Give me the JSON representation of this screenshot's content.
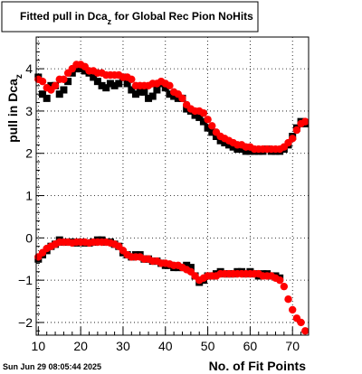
{
  "title_box": {
    "title": "Fitted pull in Dca",
    "title_sub": "z",
    "title_rest": " for Global Rec Pion NoHits"
  },
  "timestamp": "Sun Jun 29 08:05:44 2025",
  "chart_data": {
    "type": "scatter",
    "title": "Fitted pull in Dca_z for Global Rec Pion NoHits",
    "xlabel": "No. of Fit Points",
    "ylabel": "pull in Dca",
    "ylabel_sub": "z",
    "xlim": [
      9.5,
      73.8
    ],
    "ylim": [
      -2.3,
      4.75
    ],
    "xticks": [
      10,
      20,
      30,
      40,
      50,
      60,
      70
    ],
    "xticklabels": [
      "10",
      "20",
      "30",
      "40",
      "50",
      "60",
      "70"
    ],
    "yticks": [
      -2,
      -1,
      0,
      1,
      2,
      3,
      4
    ],
    "yticklabels": [
      "−2",
      "−1",
      "0",
      "1",
      "2",
      "3",
      "4"
    ],
    "grid": true,
    "series": [
      {
        "marker": "square",
        "color": "#000000",
        "x": [
          10,
          11,
          12,
          13,
          14,
          15,
          16,
          17,
          18,
          19,
          20,
          21,
          22,
          23,
          24,
          25,
          26,
          27,
          28,
          29,
          30,
          31,
          32,
          33,
          34,
          35,
          36,
          37,
          38,
          39,
          40,
          41,
          42,
          43,
          44,
          45,
          46,
          47,
          48,
          49,
          50,
          51,
          52,
          53,
          54,
          55,
          56,
          57,
          58,
          59,
          60,
          61,
          62,
          63,
          64,
          65,
          66,
          67,
          68,
          69,
          70,
          71,
          72,
          73
        ],
        "y": [
          3.8,
          3.4,
          3.3,
          3.6,
          3.6,
          3.4,
          3.5,
          3.7,
          3.9,
          4.0,
          4.0,
          3.95,
          3.9,
          3.8,
          3.7,
          3.6,
          3.55,
          3.65,
          3.6,
          3.65,
          3.8,
          3.65,
          3.5,
          3.4,
          3.45,
          3.45,
          3.3,
          3.35,
          3.5,
          3.65,
          3.55,
          3.4,
          3.35,
          3.3,
          3.3,
          3.05,
          3.0,
          2.9,
          2.85,
          2.75,
          2.6,
          2.5,
          2.4,
          2.3,
          2.25,
          2.2,
          2.15,
          2.1,
          2.1,
          2.05,
          2.05,
          2.05,
          2.05,
          2.05,
          2.1,
          2.05,
          2.05,
          2.05,
          2.1,
          2.2,
          2.4,
          2.6,
          2.75,
          2.7
        ]
      },
      {
        "marker": "square",
        "color": "#000000",
        "x": [
          10,
          11,
          12,
          13,
          14,
          15,
          16,
          17,
          18,
          19,
          20,
          21,
          22,
          23,
          24,
          25,
          26,
          27,
          28,
          29,
          30,
          31,
          32,
          33,
          34,
          35,
          36,
          37,
          38,
          39,
          40,
          41,
          42,
          43,
          44,
          45,
          46,
          47,
          48,
          49,
          50,
          51,
          52,
          53,
          54,
          55,
          56,
          57,
          58,
          59,
          60,
          61,
          62,
          63,
          64,
          65,
          66,
          67
        ],
        "y": [
          -0.5,
          -0.4,
          -0.3,
          -0.2,
          -0.15,
          -0.05,
          -0.1,
          -0.1,
          -0.1,
          -0.12,
          -0.1,
          -0.12,
          -0.12,
          -0.1,
          -0.05,
          -0.05,
          -0.1,
          -0.1,
          -0.15,
          -0.2,
          -0.35,
          -0.4,
          -0.45,
          -0.4,
          -0.4,
          -0.5,
          -0.5,
          -0.55,
          -0.55,
          -0.6,
          -0.65,
          -0.65,
          -0.7,
          -0.7,
          -0.7,
          -0.65,
          -0.7,
          -0.9,
          -1.05,
          -1.0,
          -0.9,
          -0.9,
          -0.85,
          -0.8,
          -0.85,
          -0.85,
          -0.85,
          -0.8,
          -0.8,
          -0.85,
          -0.8,
          -0.85,
          -0.9,
          -0.85,
          -0.85,
          -0.9,
          -0.9,
          -0.95
        ]
      },
      {
        "marker": "circle",
        "color": "#ff0000",
        "x": [
          10,
          11,
          12,
          13,
          14,
          15,
          16,
          17,
          18,
          19,
          20,
          21,
          22,
          23,
          24,
          25,
          26,
          27,
          28,
          29,
          30,
          31,
          32,
          33,
          34,
          35,
          36,
          37,
          38,
          39,
          40,
          41,
          42,
          43,
          44,
          45,
          46,
          47,
          48,
          49,
          50,
          51,
          52,
          53,
          54,
          55,
          56,
          57,
          58,
          59,
          60,
          61,
          62,
          63,
          64,
          65,
          66,
          67,
          68,
          69,
          70,
          71,
          72,
          73
        ],
        "y": [
          3.75,
          3.7,
          3.55,
          3.5,
          3.6,
          3.75,
          3.75,
          3.9,
          4.0,
          4.1,
          4.1,
          4.05,
          3.95,
          3.95,
          3.9,
          3.9,
          3.85,
          3.85,
          3.85,
          3.85,
          3.8,
          3.8,
          3.75,
          3.6,
          3.6,
          3.6,
          3.6,
          3.65,
          3.65,
          3.7,
          3.65,
          3.6,
          3.45,
          3.4,
          3.3,
          3.15,
          3.05,
          3.0,
          3.0,
          2.95,
          2.8,
          2.65,
          2.5,
          2.4,
          2.35,
          2.3,
          2.25,
          2.2,
          2.2,
          2.15,
          2.15,
          2.1,
          2.1,
          2.1,
          2.1,
          2.1,
          2.1,
          2.1,
          2.15,
          2.25,
          2.35,
          2.55,
          2.7,
          2.75
        ]
      },
      {
        "marker": "circle",
        "color": "#ff0000",
        "x": [
          10,
          11,
          12,
          13,
          14,
          15,
          16,
          17,
          18,
          19,
          20,
          21,
          22,
          23,
          24,
          25,
          26,
          27,
          28,
          29,
          30,
          31,
          32,
          33,
          34,
          35,
          36,
          37,
          38,
          39,
          40,
          41,
          42,
          43,
          44,
          45,
          46,
          47,
          48,
          49,
          50,
          51,
          52,
          53,
          54,
          55,
          56,
          57,
          58,
          59,
          60,
          61,
          62,
          63,
          64,
          65,
          66,
          67,
          68,
          69,
          70,
          71,
          72,
          73
        ],
        "y": [
          -0.45,
          -0.35,
          -0.25,
          -0.2,
          -0.15,
          -0.1,
          -0.1,
          -0.1,
          -0.12,
          -0.1,
          -0.1,
          -0.1,
          -0.12,
          -0.1,
          -0.1,
          -0.1,
          -0.1,
          -0.12,
          -0.15,
          -0.2,
          -0.3,
          -0.4,
          -0.45,
          -0.45,
          -0.45,
          -0.5,
          -0.5,
          -0.55,
          -0.55,
          -0.6,
          -0.6,
          -0.62,
          -0.65,
          -0.65,
          -0.7,
          -0.75,
          -0.8,
          -0.9,
          -1.0,
          -0.95,
          -0.9,
          -0.9,
          -0.9,
          -0.85,
          -0.85,
          -0.85,
          -0.85,
          -0.85,
          -0.85,
          -0.85,
          -0.85,
          -0.85,
          -0.85,
          -0.9,
          -0.9,
          -0.9,
          -0.95,
          -1.0,
          -1.15,
          -1.45,
          -1.7,
          -1.9,
          -2.0,
          -2.2
        ]
      }
    ]
  }
}
